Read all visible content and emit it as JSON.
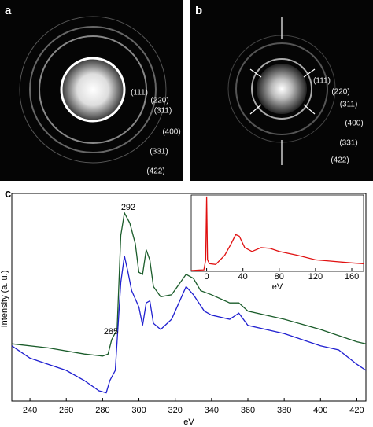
{
  "panels": [
    {
      "label": "a",
      "rings": [
        "(111)",
        "(220)",
        "(311)",
        "(400)",
        "(331)",
        "(422)"
      ]
    },
    {
      "label": "b",
      "rings": [
        "(111)",
        "(220)",
        "(311)",
        "(400)",
        "(331)",
        "(422)"
      ]
    }
  ],
  "chart_data": [
    {
      "type": "line",
      "panel_label": "c",
      "x_label": "eV",
      "y_label": "Intensity (a. u.)",
      "xlim": [
        230,
        425
      ],
      "xticks": [
        240,
        260,
        280,
        300,
        320,
        340,
        360,
        380,
        400,
        420
      ],
      "ylim": [
        0,
        100
      ],
      "annotations": [
        "292",
        "285"
      ],
      "series": [
        {
          "color": "#1a5c2a",
          "x": [
            230,
            250,
            270,
            280,
            283,
            285,
            288,
            290,
            292,
            295,
            298,
            300,
            302,
            304,
            306,
            308,
            312,
            318,
            322,
            326,
            330,
            334,
            340,
            350,
            355,
            360,
            380,
            400,
            420,
            425
          ],
          "values": [
            28,
            26,
            23,
            22,
            23,
            30,
            35,
            81,
            92,
            87,
            77,
            63,
            62,
            74,
            69,
            56,
            51,
            52,
            57,
            62,
            60,
            54,
            52,
            48,
            48,
            44,
            40,
            35,
            29,
            28
          ]
        },
        {
          "color": "#1f1fd0",
          "x": [
            230,
            240,
            250,
            260,
            270,
            278,
            282,
            284,
            287,
            290,
            292,
            294,
            296,
            298,
            300,
            302,
            304,
            306,
            308,
            312,
            318,
            322,
            326,
            330,
            336,
            340,
            350,
            355,
            360,
            380,
            400,
            410,
            420,
            425
          ],
          "values": [
            27,
            21,
            18,
            15,
            10,
            5,
            4,
            10,
            15,
            58,
            71,
            63,
            54,
            50,
            46,
            37,
            48,
            49,
            38,
            35,
            40,
            48,
            56,
            52,
            44,
            42,
            40,
            43,
            37,
            33,
            27,
            25,
            18,
            15
          ]
        }
      ]
    },
    {
      "type": "line",
      "x_label": "eV",
      "xlim": [
        -17,
        173
      ],
      "xticks": [
        0,
        40,
        80,
        120,
        160
      ],
      "ylim": [
        0,
        100
      ],
      "series": [
        {
          "color": "#e01010",
          "x": [
            -17,
            -3,
            -1,
            0,
            1,
            3,
            10,
            20,
            27,
            32,
            36,
            42,
            50,
            60,
            70,
            80,
            100,
            120,
            140,
            160,
            173
          ],
          "values": [
            1,
            2,
            15,
            98,
            15,
            10,
            9,
            21,
            36,
            48,
            46,
            31,
            26,
            31,
            30,
            26,
            21,
            15,
            13,
            11,
            10
          ]
        }
      ]
    }
  ]
}
